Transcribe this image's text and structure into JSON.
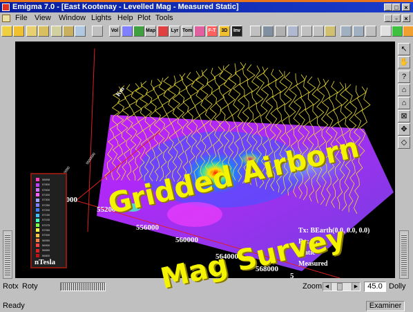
{
  "window": {
    "title": "Emigma 7.0 - [East Kootenay - Levelled Mag - Measured Static]",
    "controls": [
      "_",
      "□",
      "×"
    ],
    "child_controls": [
      "_",
      "▫",
      "×"
    ]
  },
  "menu": [
    "File",
    "View",
    "Window",
    "Lights",
    "Help",
    "Plot",
    "Tools"
  ],
  "toolbar": {
    "labels": [
      "Vol",
      "Map",
      "Lyr",
      "Tom",
      "F-T",
      "3D",
      "Inv"
    ]
  },
  "viewport": {
    "axis_labels": [
      "552000",
      "556000",
      "560000",
      "564000",
      "568000",
      "5"
    ],
    "left_axis_labels": [
      "9000"
    ],
    "info": {
      "tx": "Tx: BEarth(0.0, 0.0, 0.0)",
      "rx": "Rx: Bt",
      "mode": "Static",
      "type": "Measured"
    },
    "legend": {
      "unit": "nTesla",
      "entries": [
        "58898",
        "57800",
        "57600",
        "57400",
        "57300",
        "57250",
        "57200",
        "57150",
        "57100",
        "57075",
        "57050",
        "57000",
        "56950",
        "56900",
        "56850",
        "56800"
      ],
      "colors": [
        "#ff40c0",
        "#c040ff",
        "#d070ff",
        "#ff60ff",
        "#a0a0ff",
        "#8080ff",
        "#4080ff",
        "#40c0ff",
        "#40ffc0",
        "#80ff40",
        "#ffff40",
        "#ffc040",
        "#ff8040",
        "#ff4040",
        "#e02020",
        "#c01010"
      ]
    }
  },
  "overlay": {
    "line1": "Gridded Airborn",
    "line2": "Mag Survey"
  },
  "bottom": {
    "rotx": "Rotx",
    "roty": "Roty",
    "zoom_label": "Zoom",
    "zoom_value": "45.0",
    "dolly": "Dolly"
  },
  "status": {
    "left": "Ready",
    "right": "Examiner"
  }
}
